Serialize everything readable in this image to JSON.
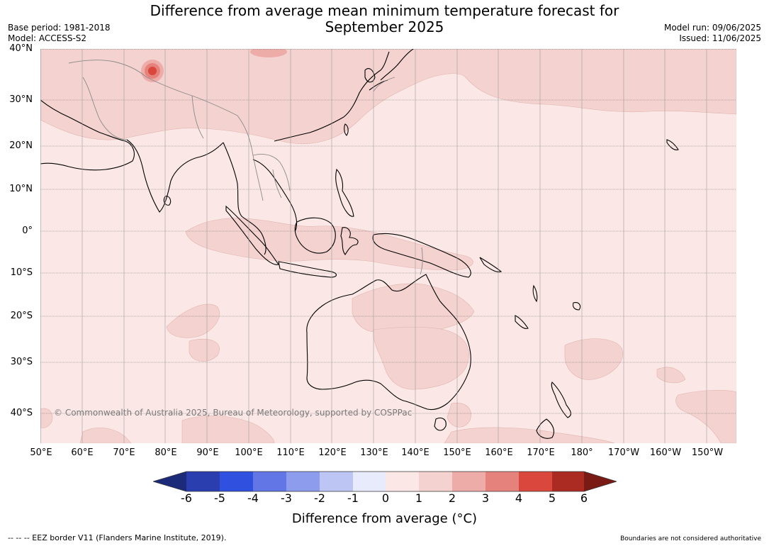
{
  "title_line1": "Difference from average mean minimum temperature forecast for",
  "title_line2": "September 2025",
  "base_period": "Base period: 1981-2018",
  "model": "Model: ACCESS-S2",
  "model_run": "Model run: 09/06/2025",
  "issued": "Issued: 11/06/2025",
  "lat_labels": [
    "40°N",
    "30°N",
    "20°N",
    "10°N",
    "0°",
    "10°S",
    "20°S",
    "30°S",
    "40°S"
  ],
  "lon_labels": [
    "50°E",
    "60°E",
    "70°E",
    "80°E",
    "90°E",
    "100°E",
    "110°E",
    "120°E",
    "130°E",
    "140°E",
    "150°E",
    "160°E",
    "170°E",
    "180°",
    "170°W",
    "160°W",
    "150°W"
  ],
  "copyright": "© Commonwealth of Australia 2025, Bureau of Meteorology, supported by COSPPac",
  "colorbar": {
    "ticks": [
      "-6",
      "-5",
      "-4",
      "-3",
      "-2",
      "-1",
      "0",
      "1",
      "2",
      "3",
      "4",
      "5",
      "6"
    ],
    "label": "Difference from average (°C)",
    "colors": [
      "#1c2a7a",
      "#2a3eb0",
      "#3050e0",
      "#6276e6",
      "#8d9cec",
      "#bcc5f4",
      "#e8ebfc",
      "#fbe8e6",
      "#f4d2cf",
      "#eeaca8",
      "#e6827c",
      "#d9473d",
      "#ab2a22",
      "#7a1a15"
    ]
  },
  "eez_note": "--  --  -- EEZ border V11 (Flanders Marine Institute, 2019).",
  "boundaries_note": "Boundaries are not considered authoritative",
  "map_colors": {
    "ocean_base": "#fbe8e6",
    "anomaly_1_2": "#f4d2cf",
    "anomaly_3_4": "#e6827c",
    "anomaly_4_5": "#d9473d",
    "coastline": "#000000",
    "border": "#8a8a8a"
  }
}
